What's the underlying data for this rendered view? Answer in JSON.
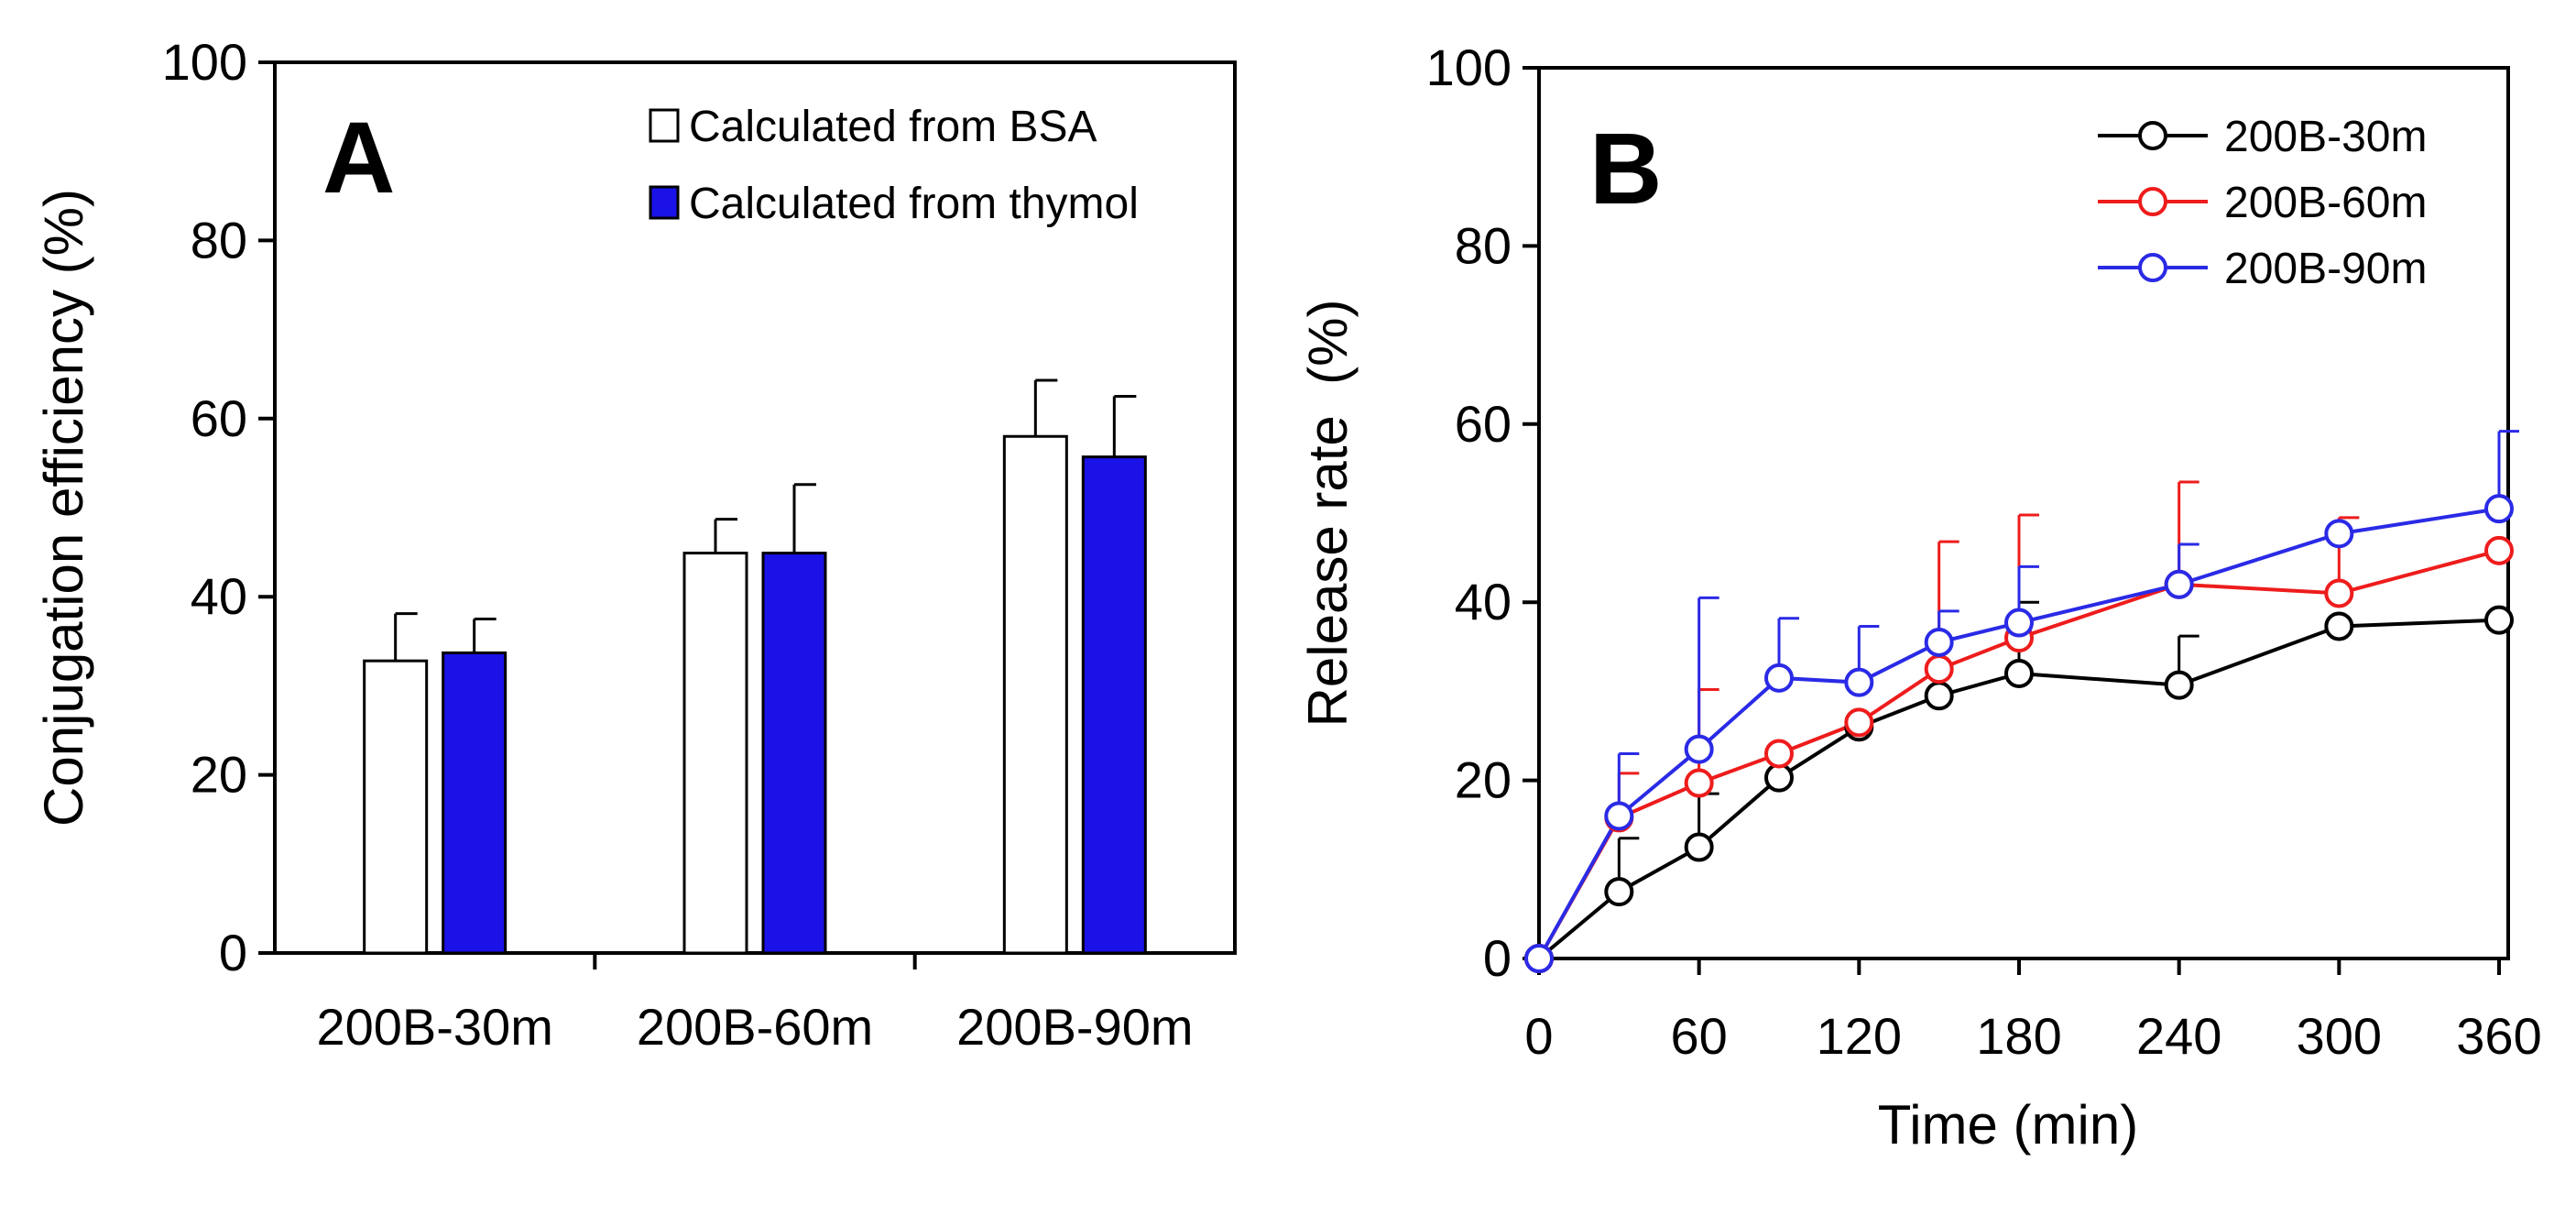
{
  "chart_data": [
    {
      "type": "bar",
      "panel_label": "A",
      "title": "",
      "xlabel": "",
      "ylabel": "Conjugation efficiency (%)",
      "ylim": [
        0,
        100
      ],
      "yticks": [
        "0",
        "20",
        "40",
        "60",
        "80",
        "100"
      ],
      "categories": [
        "200B-30m",
        "200B-60m",
        "200B-90m"
      ],
      "legend_position": "top-right",
      "series": [
        {
          "name": "Calculated from BSA",
          "color": "#ffffff",
          "values": [
            32.8,
            44.9,
            58.0
          ],
          "errors": [
            5.3,
            3.8,
            6.3
          ]
        },
        {
          "name": "Calculated from thymol",
          "color": "#1a12e6",
          "values": [
            33.7,
            44.9,
            55.7
          ],
          "errors": [
            3.8,
            7.7,
            6.8
          ]
        }
      ]
    },
    {
      "type": "line",
      "panel_label": "B",
      "title": "",
      "xlabel": "Time (min)",
      "ylabel": "Release rate  (%)",
      "xlim": [
        0,
        360
      ],
      "ylim": [
        0,
        100
      ],
      "xticks": [
        "0",
        "60",
        "120",
        "180",
        "240",
        "300",
        "360"
      ],
      "yticks": [
        "0",
        "20",
        "40",
        "60",
        "80",
        "100"
      ],
      "x": [
        0,
        30,
        60,
        90,
        120,
        150,
        180,
        240,
        300,
        360
      ],
      "legend_position": "top-right",
      "series": [
        {
          "name": "200B-30m",
          "color": "#000000",
          "values": [
            0,
            7.5,
            12.5,
            20.3,
            26.0,
            29.5,
            32.0,
            30.7,
            37.3,
            38.0
          ],
          "errors": [
            0,
            6,
            6,
            0,
            0,
            0,
            8,
            5.5,
            0,
            0
          ]
        },
        {
          "name": "200B-60m",
          "color": "#ee1c1c",
          "values": [
            0,
            15.8,
            19.7,
            23.0,
            26.5,
            32.5,
            36.0,
            42.0,
            41.0,
            45.8
          ],
          "errors": [
            0,
            5,
            10.5,
            0,
            0,
            14.3,
            13.8,
            11.5,
            8.5,
            0
          ]
        },
        {
          "name": "200B-90m",
          "color": "#2a2ae6",
          "values": [
            0,
            16.0,
            23.5,
            31.5,
            31.0,
            35.5,
            37.7,
            42.0,
            47.7,
            50.5
          ],
          "errors": [
            0,
            7,
            17,
            6.7,
            6.3,
            3.5,
            6.3,
            4.5,
            0,
            8.7
          ]
        }
      ]
    }
  ]
}
